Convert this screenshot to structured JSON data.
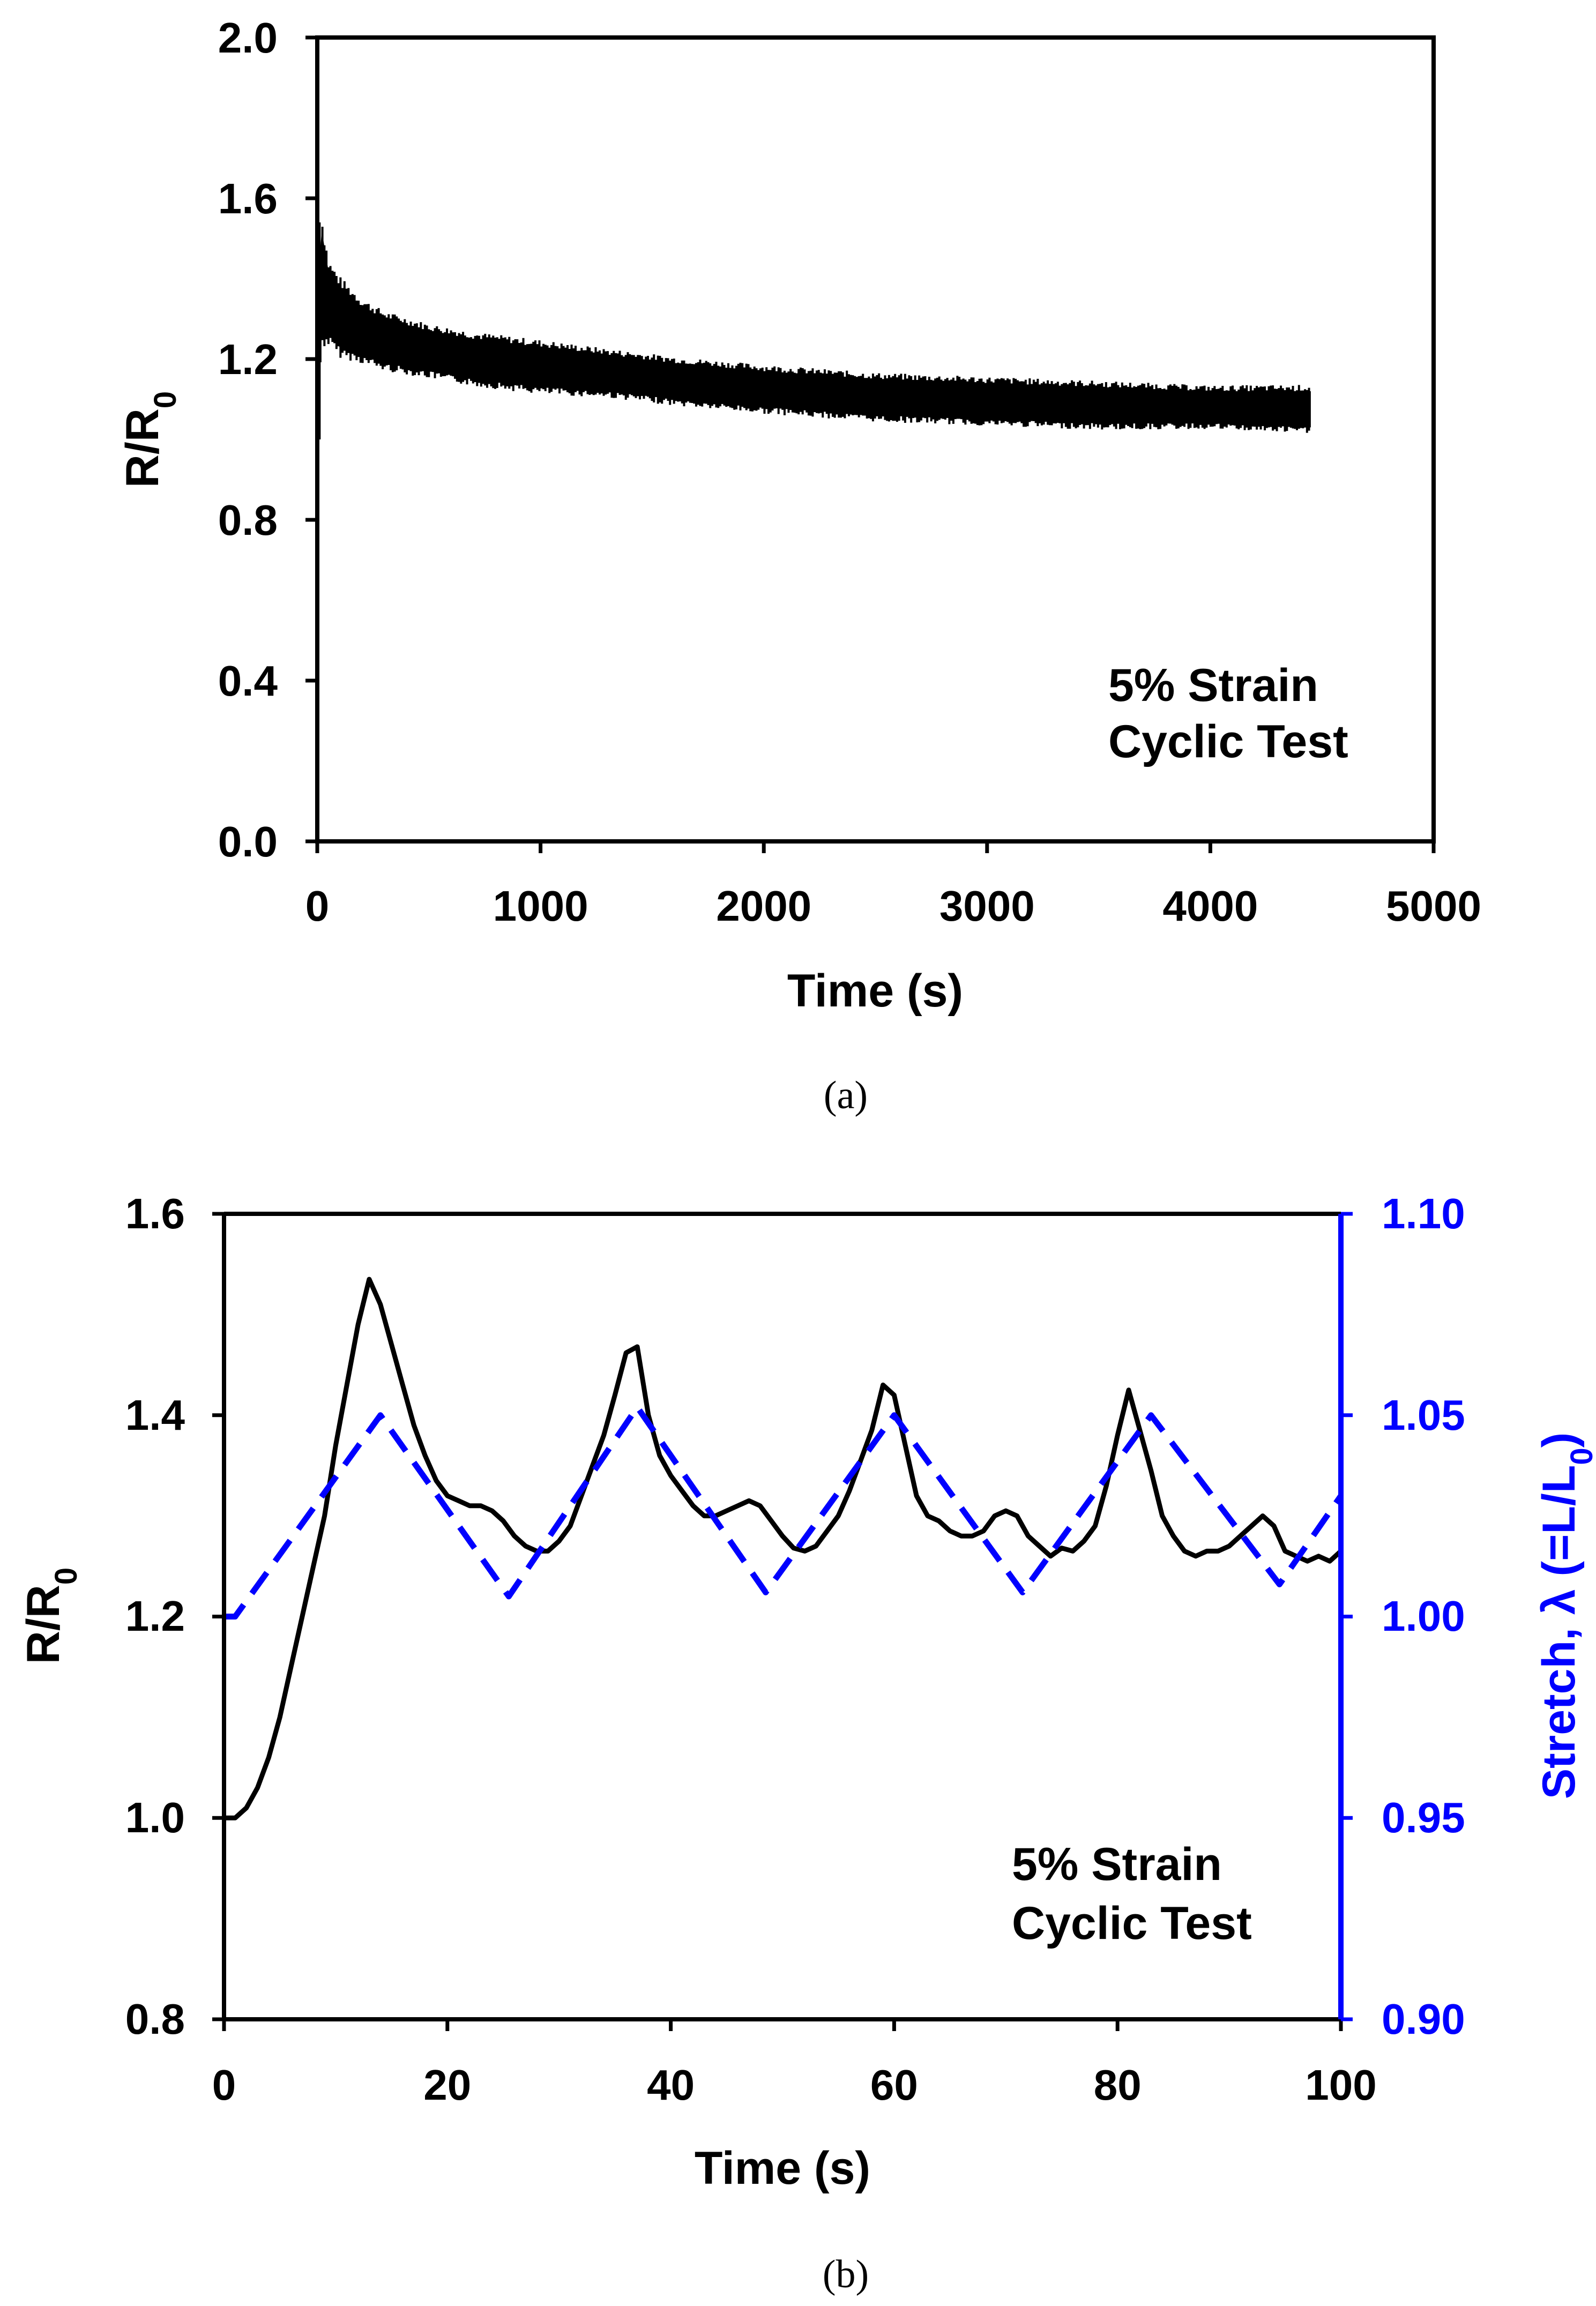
{
  "colors": {
    "axis": "#000000",
    "primary_series": "#000000",
    "secondary_series": "#0000ff"
  },
  "chart_data": [
    {
      "type": "line",
      "panel_label": "(a)",
      "xlabel": "Time (s)",
      "ylabel_main": "R/R",
      "ylabel_sub": "0",
      "xlim": [
        0,
        5000
      ],
      "ylim": [
        0,
        2.0
      ],
      "xticks": [
        0,
        1000,
        2000,
        3000,
        4000,
        5000
      ],
      "xtick_labels": [
        "0",
        "1000",
        "2000",
        "3000",
        "4000",
        "5000"
      ],
      "yticks": [
        0,
        0.4,
        0.8,
        1.2,
        1.6,
        2.0
      ],
      "ytick_labels": [
        "0.0",
        "0.4",
        "0.8",
        "1.2",
        "1.6",
        "2.0"
      ],
      "annotation": [
        "5% Strain",
        "Cyclic Test"
      ],
      "series": [
        {
          "name": "R/R0",
          "style": "band",
          "color": "#000000",
          "x": [
            0,
            20,
            50,
            100,
            200,
            300,
            500,
            700,
            1000,
            1300,
            1600,
            2000,
            2500,
            3000,
            3500,
            4000,
            4450
          ],
          "lower": [
            1.05,
            1.27,
            1.26,
            1.23,
            1.21,
            1.19,
            1.17,
            1.15,
            1.13,
            1.12,
            1.1,
            1.08,
            1.06,
            1.05,
            1.04,
            1.04,
            1.03
          ],
          "upper": [
            1.38,
            1.52,
            1.42,
            1.38,
            1.33,
            1.3,
            1.27,
            1.25,
            1.23,
            1.21,
            1.19,
            1.17,
            1.15,
            1.14,
            1.13,
            1.12,
            1.12
          ]
        }
      ]
    },
    {
      "type": "line",
      "panel_label": "(b)",
      "xlabel": "Time (s)",
      "ylabel_main": "R/R",
      "ylabel_sub": "0",
      "ylabel_right_main": "Stretch, λ (=L/L",
      "ylabel_right_sub": "0",
      "ylabel_right_end": ")",
      "xlim": [
        0,
        100
      ],
      "ylim": [
        0.8,
        1.6
      ],
      "ylim_right": [
        0.9,
        1.1
      ],
      "xticks": [
        0,
        20,
        40,
        60,
        80,
        100
      ],
      "xtick_labels": [
        "0",
        "20",
        "40",
        "60",
        "80",
        "100"
      ],
      "yticks": [
        0.8,
        1.0,
        1.2,
        1.4,
        1.6
      ],
      "ytick_labels": [
        "0.8",
        "1.0",
        "1.2",
        "1.4",
        "1.6"
      ],
      "yticks_right": [
        0.9,
        0.95,
        1.0,
        1.05,
        1.1
      ],
      "ytick_labels_right": [
        "0.90",
        "0.95",
        "1.00",
        "1.05",
        "1.10"
      ],
      "annotation": [
        "5% Strain",
        "Cyclic Test"
      ],
      "series": [
        {
          "name": "R/R0",
          "axis": "left",
          "style": "solid",
          "color": "#000000",
          "x": [
            0,
            1,
            2,
            3,
            4,
            5,
            6,
            7,
            8,
            9,
            10,
            11,
            12,
            13,
            14,
            15,
            16,
            17,
            18,
            19,
            20,
            21,
            22,
            23,
            24,
            25,
            26,
            27,
            28,
            29,
            30,
            31,
            32,
            33,
            34,
            35,
            36,
            37,
            38,
            39,
            40,
            41,
            42,
            43,
            44,
            45,
            46,
            47,
            48,
            49,
            50,
            51,
            52,
            53,
            54,
            55,
            56,
            57,
            58,
            59,
            60,
            61,
            62,
            63,
            64,
            65,
            66,
            67,
            68,
            69,
            70,
            71,
            72,
            73,
            74,
            75,
            76,
            77,
            78,
            79,
            80,
            81,
            82,
            83,
            84,
            85,
            86,
            87,
            88,
            89,
            90,
            91,
            92,
            93,
            94,
            95,
            96,
            97,
            98,
            99,
            100
          ],
          "y": [
            1.0,
            1.0,
            1.01,
            1.03,
            1.06,
            1.1,
            1.15,
            1.2,
            1.25,
            1.3,
            1.37,
            1.43,
            1.49,
            1.535,
            1.51,
            1.47,
            1.43,
            1.39,
            1.36,
            1.335,
            1.32,
            1.315,
            1.31,
            1.31,
            1.305,
            1.295,
            1.28,
            1.27,
            1.265,
            1.265,
            1.275,
            1.29,
            1.32,
            1.35,
            1.38,
            1.42,
            1.462,
            1.468,
            1.4,
            1.36,
            1.34,
            1.325,
            1.31,
            1.3,
            1.3,
            1.305,
            1.31,
            1.315,
            1.31,
            1.295,
            1.28,
            1.268,
            1.265,
            1.27,
            1.285,
            1.3,
            1.325,
            1.355,
            1.385,
            1.43,
            1.42,
            1.37,
            1.32,
            1.3,
            1.295,
            1.285,
            1.28,
            1.28,
            1.285,
            1.3,
            1.305,
            1.3,
            1.28,
            1.27,
            1.26,
            1.268,
            1.265,
            1.275,
            1.29,
            1.33,
            1.38,
            1.425,
            1.385,
            1.345,
            1.3,
            1.28,
            1.265,
            1.26,
            1.265,
            1.265,
            1.27,
            1.28,
            1.29,
            1.3,
            1.29,
            1.265,
            1.26,
            1.255,
            1.26,
            1.255,
            1.265
          ]
        },
        {
          "name": "Stretch",
          "axis": "right",
          "style": "dashed",
          "color": "#0000ff",
          "x": [
            0,
            1,
            14,
            25.5,
            37,
            48.5,
            60,
            71.5,
            83,
            94.5,
            100
          ],
          "y": [
            1.0,
            1.0,
            1.05,
            1.005,
            1.052,
            1.006,
            1.05,
            1.006,
            1.05,
            1.008,
            1.03
          ]
        }
      ]
    }
  ]
}
